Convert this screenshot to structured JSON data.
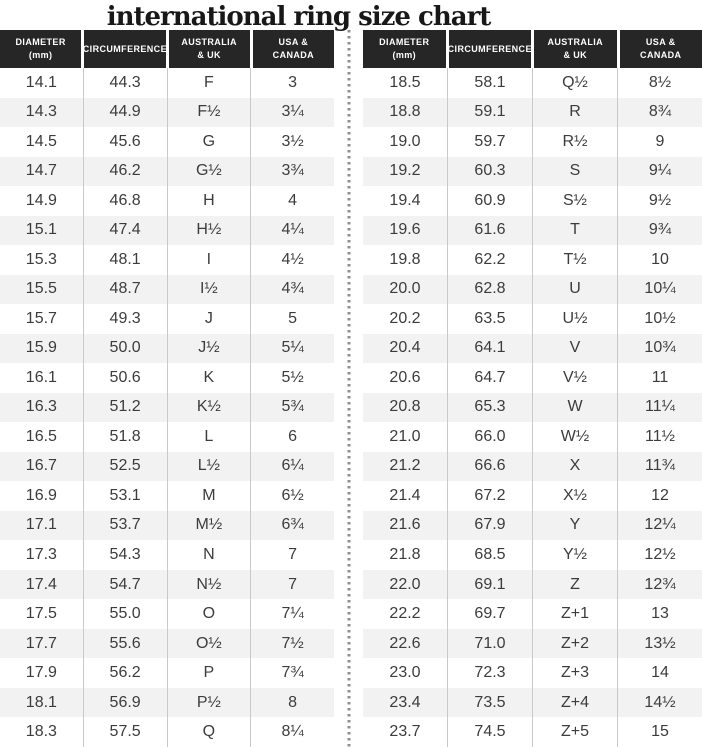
{
  "title": "international ring size chart",
  "columns": [
    "DIAMETER\n(mm)",
    "CIRCUMFERENCE",
    "AUSTRALIA\n& UK",
    "USA &\nCANADA"
  ],
  "colors": {
    "header_bg": "#262626",
    "header_text": "#ffffff",
    "row_alt_bg": "#f2f2f3",
    "body_text": "#3c3c3c",
    "title_text": "#181818",
    "column_line": "#c7c9cb",
    "divider_dot": "#8f8f8f"
  },
  "chart_data": {
    "type": "table",
    "title": "international ring size chart",
    "columns": [
      "Diameter (mm)",
      "Circumference",
      "Australia & UK",
      "USA & Canada"
    ],
    "tables": [
      {
        "rows": [
          [
            "14.1",
            "44.3",
            "F",
            "3"
          ],
          [
            "14.3",
            "44.9",
            "F½",
            "3¼"
          ],
          [
            "14.5",
            "45.6",
            "G",
            "3½"
          ],
          [
            "14.7",
            "46.2",
            "G½",
            "3¾"
          ],
          [
            "14.9",
            "46.8",
            "H",
            "4"
          ],
          [
            "15.1",
            "47.4",
            "H½",
            "4¼"
          ],
          [
            "15.3",
            "48.1",
            "I",
            "4½"
          ],
          [
            "15.5",
            "48.7",
            "I½",
            "4¾"
          ],
          [
            "15.7",
            "49.3",
            "J",
            "5"
          ],
          [
            "15.9",
            "50.0",
            "J½",
            "5¼"
          ],
          [
            "16.1",
            "50.6",
            "K",
            "5½"
          ],
          [
            "16.3",
            "51.2",
            "K½",
            "5¾"
          ],
          [
            "16.5",
            "51.8",
            "L",
            "6"
          ],
          [
            "16.7",
            "52.5",
            "L½",
            "6¼"
          ],
          [
            "16.9",
            "53.1",
            "M",
            "6½"
          ],
          [
            "17.1",
            "53.7",
            "M½",
            "6¾"
          ],
          [
            "17.3",
            "54.3",
            "N",
            "7"
          ],
          [
            "17.4",
            "54.7",
            "N½",
            "7"
          ],
          [
            "17.5",
            "55.0",
            "O",
            "7¼"
          ],
          [
            "17.7",
            "55.6",
            "O½",
            "7½"
          ],
          [
            "17.9",
            "56.2",
            "P",
            "7¾"
          ],
          [
            "18.1",
            "56.9",
            "P½",
            "8"
          ],
          [
            "18.3",
            "57.5",
            "Q",
            "8¼"
          ]
        ]
      },
      {
        "rows": [
          [
            "18.5",
            "58.1",
            "Q½",
            "8½"
          ],
          [
            "18.8",
            "59.1",
            "R",
            "8¾"
          ],
          [
            "19.0",
            "59.7",
            "R½",
            "9"
          ],
          [
            "19.2",
            "60.3",
            "S",
            "9¼"
          ],
          [
            "19.4",
            "60.9",
            "S½",
            "9½"
          ],
          [
            "19.6",
            "61.6",
            "T",
            "9¾"
          ],
          [
            "19.8",
            "62.2",
            "T½",
            "10"
          ],
          [
            "20.0",
            "62.8",
            "U",
            "10¼"
          ],
          [
            "20.2",
            "63.5",
            "U½",
            "10½"
          ],
          [
            "20.4",
            "64.1",
            "V",
            "10¾"
          ],
          [
            "20.6",
            "64.7",
            "V½",
            "11"
          ],
          [
            "20.8",
            "65.3",
            "W",
            "11¼"
          ],
          [
            "21.0",
            "66.0",
            "W½",
            "11½"
          ],
          [
            "21.2",
            "66.6",
            "X",
            "11¾"
          ],
          [
            "21.4",
            "67.2",
            "X½",
            "12"
          ],
          [
            "21.6",
            "67.9",
            "Y",
            "12¼"
          ],
          [
            "21.8",
            "68.5",
            "Y½",
            "12½"
          ],
          [
            "22.0",
            "69.1",
            "Z",
            "12¾"
          ],
          [
            "22.2",
            "69.7",
            "Z+1",
            "13"
          ],
          [
            "22.6",
            "71.0",
            "Z+2",
            "13½"
          ],
          [
            "23.0",
            "72.3",
            "Z+3",
            "14"
          ],
          [
            "23.4",
            "73.5",
            "Z+4",
            "14½"
          ],
          [
            "23.7",
            "74.5",
            "Z+5",
            "15"
          ]
        ]
      }
    ]
  }
}
